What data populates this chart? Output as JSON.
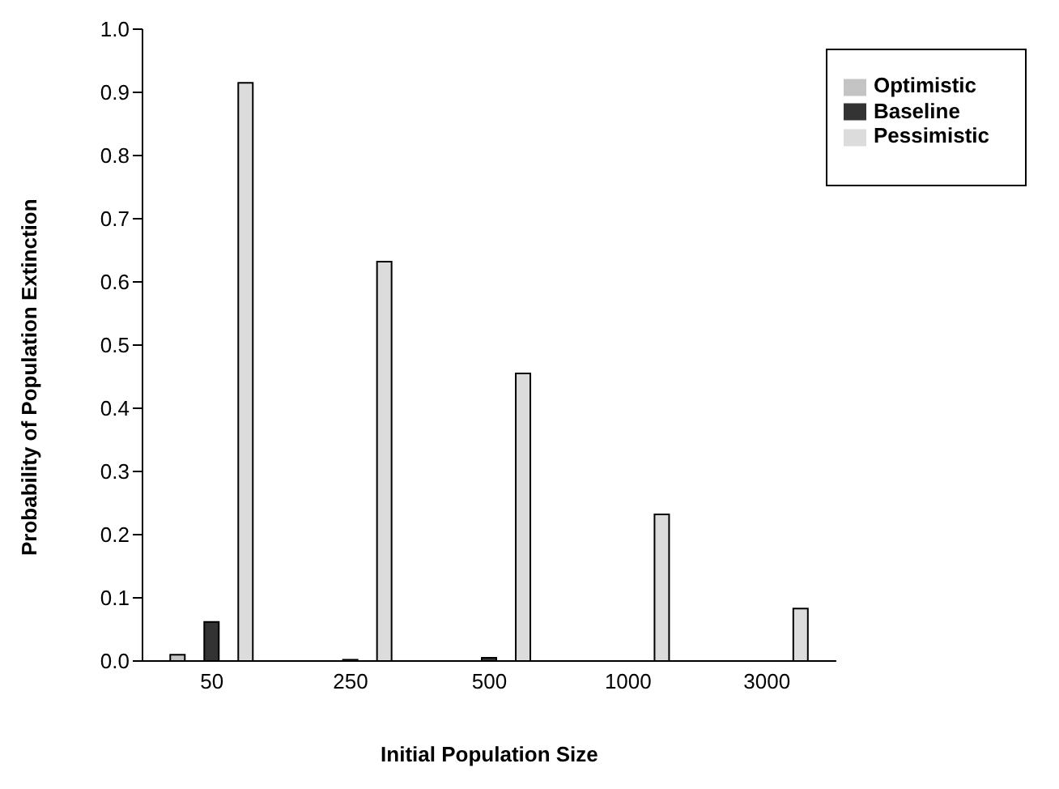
{
  "chart_data": {
    "type": "bar",
    "xlabel": "Initial Population Size",
    "ylabel": "Probability of Population Extinction",
    "categories": [
      "50",
      "250",
      "500",
      "1000",
      "3000"
    ],
    "series": [
      {
        "name": "Optimistic",
        "color": "#c4c4c4",
        "values": [
          0.01,
          0,
          0,
          0,
          0
        ]
      },
      {
        "name": "Baseline",
        "color": "#333333",
        "values": [
          0.062,
          0.002,
          0.005,
          null,
          0
        ]
      },
      {
        "name": "Pessimistic",
        "color": "#dcdcdc",
        "values": [
          0.915,
          0.632,
          0.455,
          0.232,
          0.083
        ]
      }
    ],
    "ylim": [
      0,
      1
    ],
    "yticks": [
      {
        "value": 0,
        "label": "0.0"
      },
      {
        "value": 0.1,
        "label": "0.1"
      },
      {
        "value": 0.2,
        "label": "0.2"
      },
      {
        "value": 0.3,
        "label": "0.3"
      },
      {
        "value": 0.4,
        "label": "0.4"
      },
      {
        "value": 0.5,
        "label": "0.5"
      },
      {
        "value": 0.6,
        "label": "0.6"
      },
      {
        "value": 0.7,
        "label": "0.7"
      },
      {
        "value": 0.8,
        "label": "0.8"
      },
      {
        "value": 0.9,
        "label": "0.9"
      },
      {
        "value": 1,
        "label": "1.0"
      }
    ],
    "grid": false,
    "legend": "top right"
  }
}
